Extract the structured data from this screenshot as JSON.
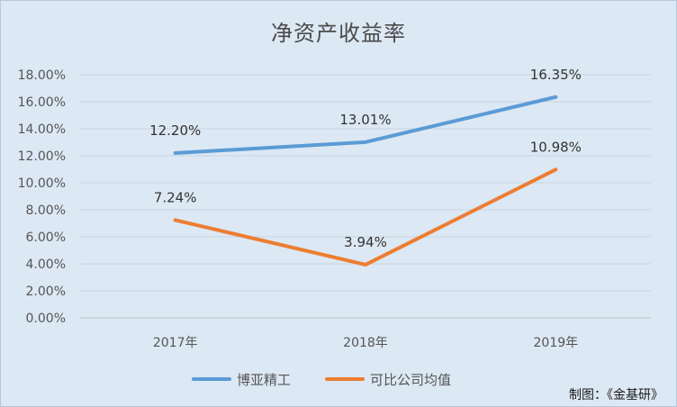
{
  "chart_data": {
    "type": "line",
    "title": "净资产收益率",
    "categories": [
      "2017年",
      "2018年",
      "2019年"
    ],
    "series": [
      {
        "name": "博亚精工",
        "values": [
          12.2,
          13.01,
          16.35
        ],
        "labels": [
          "12.20%",
          "13.01%",
          "16.35%"
        ],
        "color": "#5b9bd5"
      },
      {
        "name": "可比公司均值",
        "values": [
          7.24,
          3.94,
          10.98
        ],
        "labels": [
          "7.24%",
          "3.94%",
          "10.98%"
        ],
        "color": "#ed7d31"
      }
    ],
    "ylim": [
      0,
      18
    ],
    "yticks": [
      "0.00%",
      "2.00%",
      "4.00%",
      "6.00%",
      "8.00%",
      "10.00%",
      "12.00%",
      "14.00%",
      "16.00%",
      "18.00%"
    ],
    "grid": true,
    "legend_position": "bottom"
  },
  "credit": "制图：《金基研》"
}
